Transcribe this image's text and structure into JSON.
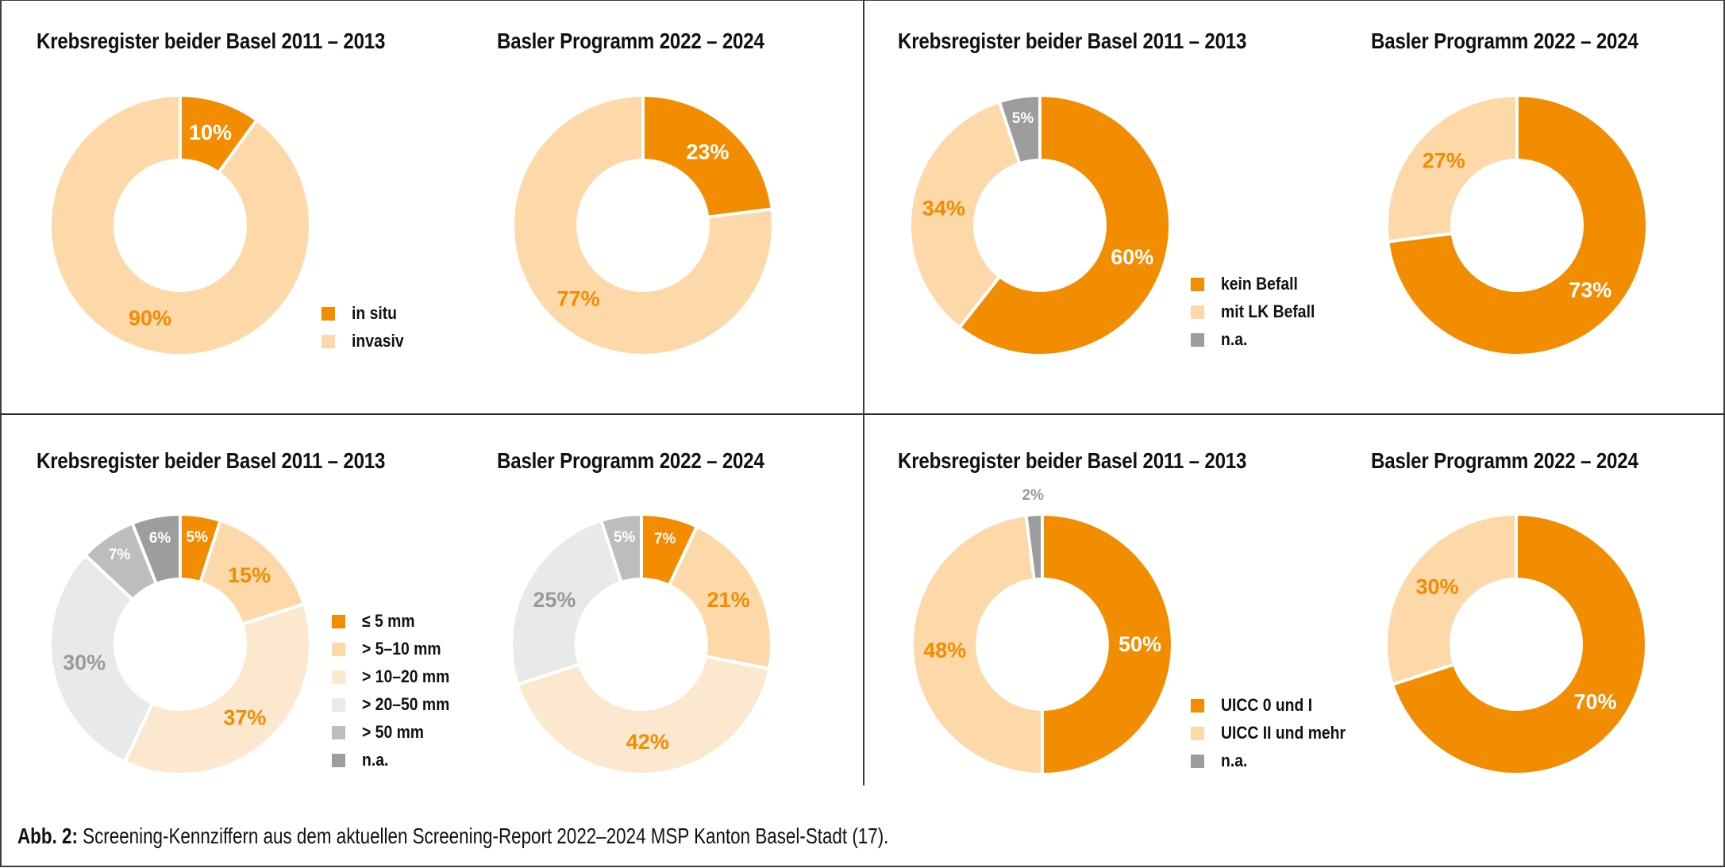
{
  "caption": {
    "lead": "Abb. 2:",
    "text": " Screening-Kennziffern aus dem aktuellen Screening-Report 2022–2024 MSP Kanton Basel-Stadt (17)."
  },
  "colors": {
    "orange": "#F28C00",
    "light_orange": "#FDD9A9",
    "pale_orange": "#FCE7CF",
    "light_gray": "#E8E9E9",
    "mid_gray": "#BDBDBD",
    "dark_gray": "#9D9D9D",
    "label_gray": "#9A9A9A",
    "white": "#FFFFFF"
  },
  "panels": [
    {
      "titles": [
        "Krebsregister beider Basel 2011 – 2013",
        "Basler Programm 2022 – 2024"
      ],
      "legend": [
        {
          "label": "in situ",
          "color_key": "orange"
        },
        {
          "label": "invasiv",
          "color_key": "light_orange"
        }
      ]
    },
    {
      "titles": [
        "Krebsregister beider Basel 2011 – 2013",
        "Basler Programm 2022 – 2024"
      ],
      "legend": [
        {
          "label": "kein Befall",
          "color_key": "orange"
        },
        {
          "label": "mit LK Befall",
          "color_key": "light_orange"
        },
        {
          "label": "n.a.",
          "color_key": "dark_gray"
        }
      ]
    },
    {
      "titles": [
        "Krebsregister beider Basel 2011 – 2013",
        "Basler Programm 2022 – 2024"
      ],
      "legend": [
        {
          "label": "≤ 5 mm",
          "color_key": "orange"
        },
        {
          "label": "> 5–10 mm",
          "color_key": "light_orange"
        },
        {
          "label": "> 10–20 mm",
          "color_key": "pale_orange"
        },
        {
          "label": "> 20–50 mm",
          "color_key": "light_gray"
        },
        {
          "label": "> 50 mm",
          "color_key": "mid_gray"
        },
        {
          "label": "n.a.",
          "color_key": "dark_gray"
        }
      ]
    },
    {
      "titles": [
        "Krebsregister beider Basel 2011 – 2013",
        "Basler Programm 2022 – 2024"
      ],
      "legend": [
        {
          "label": "UICC 0 und I",
          "color_key": "orange"
        },
        {
          "label": "UICC II und mehr",
          "color_key": "light_orange"
        },
        {
          "label": "n.a.",
          "color_key": "dark_gray"
        }
      ]
    }
  ],
  "chart_data": [
    {
      "type": "pie",
      "variant": "donut",
      "panel": 0,
      "title": "Krebsregister beider Basel 2011 – 2013",
      "categories": [
        "in situ",
        "invasiv"
      ],
      "values": [
        10,
        90
      ],
      "labels": [
        "10%",
        "90%"
      ],
      "unit": "%"
    },
    {
      "type": "pie",
      "variant": "donut",
      "panel": 0,
      "title": "Basler Programm 2022 – 2024",
      "categories": [
        "in situ",
        "invasiv"
      ],
      "values": [
        23,
        77
      ],
      "labels": [
        "23%",
        "77%"
      ],
      "unit": "%"
    },
    {
      "type": "pie",
      "variant": "donut",
      "panel": 1,
      "title": "Krebsregister beider Basel 2011 – 2013",
      "categories": [
        "kein Befall",
        "mit LK Befall",
        "n.a."
      ],
      "values": [
        60,
        34,
        5
      ],
      "labels": [
        "60%",
        "34%",
        "5%"
      ],
      "unit": "%"
    },
    {
      "type": "pie",
      "variant": "donut",
      "panel": 1,
      "title": "Basler Programm 2022 – 2024",
      "categories": [
        "kein Befall",
        "mit LK Befall"
      ],
      "values": [
        73,
        27
      ],
      "labels": [
        "73%",
        "27%"
      ],
      "unit": "%"
    },
    {
      "type": "pie",
      "variant": "donut",
      "panel": 2,
      "title": "Krebsregister beider Basel 2011 – 2013",
      "categories": [
        "≤ 5 mm",
        "> 5–10 mm",
        "> 10–20 mm",
        "> 20–50 mm",
        "> 50 mm",
        "n.a."
      ],
      "values": [
        5,
        15,
        37,
        30,
        7,
        6
      ],
      "labels": [
        "5%",
        "15%",
        "37%",
        "30%",
        "7%",
        "6%"
      ],
      "unit": "%"
    },
    {
      "type": "pie",
      "variant": "donut",
      "panel": 2,
      "title": "Basler Programm 2022 – 2024",
      "categories": [
        "≤ 5 mm",
        "> 5–10 mm",
        "> 10–20 mm",
        "> 20–50 mm",
        "> 50 mm"
      ],
      "values": [
        7,
        21,
        42,
        25,
        5
      ],
      "labels": [
        "7%",
        "21%",
        "42%",
        "25%",
        "5%"
      ],
      "unit": "%"
    },
    {
      "type": "pie",
      "variant": "donut",
      "panel": 3,
      "title": "Krebsregister beider Basel 2011 – 2013",
      "categories": [
        "UICC 0 und I",
        "UICC II und mehr",
        "n.a."
      ],
      "values": [
        50,
        48,
        2
      ],
      "labels": [
        "50%",
        "48%",
        "2%"
      ],
      "unit": "%"
    },
    {
      "type": "pie",
      "variant": "donut",
      "panel": 3,
      "title": "Basler Programm 2022 – 2024",
      "categories": [
        "UICC 0 und I",
        "UICC II und mehr"
      ],
      "values": [
        70,
        30
      ],
      "labels": [
        "70%",
        "30%"
      ],
      "unit": "%"
    }
  ]
}
